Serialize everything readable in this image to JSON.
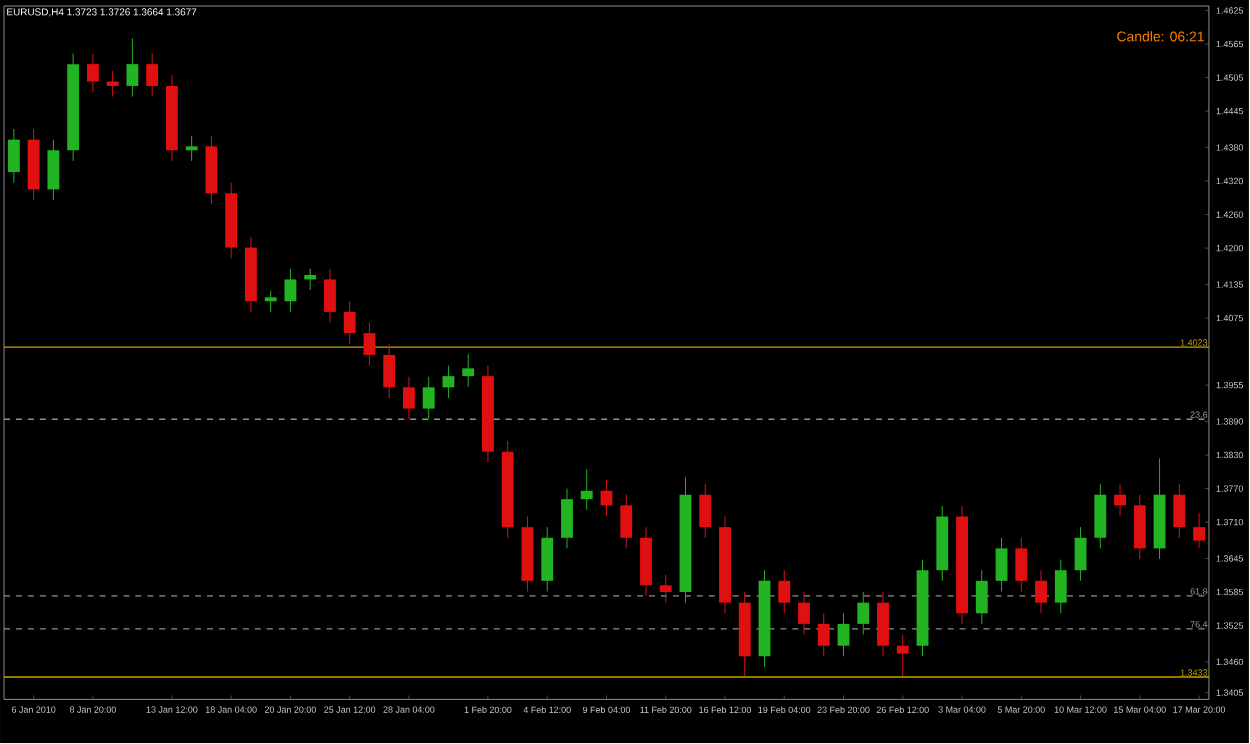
{
  "chart_data": {
    "type": "candlestick",
    "title": "EURUSD,H4  1.3723 1.3726 1.3664 1.3677",
    "categories": [
      null,
      "6 Jan 2010",
      null,
      null,
      "8 Jan 20:00",
      null,
      null,
      null,
      "13 Jan 12:00",
      null,
      null,
      "18 Jan 04:00",
      null,
      null,
      "20 Jan 20:00",
      null,
      null,
      "25 Jan 12:00",
      null,
      null,
      "28 Jan 04:00",
      null,
      null,
      null,
      "1 Feb 20:00",
      null,
      null,
      "4 Feb 12:00",
      null,
      null,
      "9 Feb 04:00",
      null,
      null,
      "11 Feb 20:00",
      null,
      null,
      "16 Feb 12:00",
      null,
      null,
      "19 Feb 04:00",
      null,
      null,
      "23 Feb 20:00",
      null,
      null,
      "26 Feb 12:00",
      null,
      null,
      "3 Mar 04:00",
      null,
      null,
      "5 Mar 20:00",
      null,
      null,
      "10 Mar 12:00",
      null,
      null,
      "15 Mar 04:00",
      null,
      null,
      "17 Mar 20:00"
    ],
    "ohlc": [
      [
        1.4336,
        1.4413,
        1.4317,
        1.4394
      ],
      [
        1.4394,
        1.4413,
        1.4286,
        1.4305
      ],
      [
        1.4305,
        1.4394,
        1.4286,
        1.4375
      ],
      [
        1.4375,
        1.4548,
        1.4356,
        1.4529
      ],
      [
        1.4529,
        1.4548,
        1.4479,
        1.4498
      ],
      [
        1.4498,
        1.4517,
        1.4471,
        1.449
      ],
      [
        1.449,
        1.4575,
        1.4471,
        1.4529
      ],
      [
        1.4529,
        1.4548,
        1.4471,
        1.449
      ],
      [
        1.449,
        1.4509,
        1.4356,
        1.4375
      ],
      [
        1.4375,
        1.4401,
        1.4356,
        1.4382
      ],
      [
        1.4382,
        1.4401,
        1.4279,
        1.4298
      ],
      [
        1.4298,
        1.4317,
        1.4182,
        1.4201
      ],
      [
        1.4201,
        1.422,
        1.4086,
        1.4105
      ],
      [
        1.4105,
        1.4124,
        1.4086,
        1.4112
      ],
      [
        1.4105,
        1.4163,
        1.4086,
        1.4144
      ],
      [
        1.4144,
        1.4163,
        1.4125,
        1.4152
      ],
      [
        1.4144,
        1.4163,
        1.4067,
        1.4086
      ],
      [
        1.4086,
        1.4105,
        1.4029,
        1.4048
      ],
      [
        1.4048,
        1.4067,
        1.399,
        1.4009
      ],
      [
        1.4009,
        1.4028,
        1.3932,
        1.3951
      ],
      [
        1.3951,
        1.397,
        1.3894,
        1.3913
      ],
      [
        1.3913,
        1.397,
        1.3894,
        1.3951
      ],
      [
        1.3951,
        1.399,
        1.3932,
        1.3971
      ],
      [
        1.3971,
        1.401,
        1.3952,
        1.3985
      ],
      [
        1.3971,
        1.399,
        1.3817,
        1.3836
      ],
      [
        1.3836,
        1.3855,
        1.3682,
        1.3701
      ],
      [
        1.3701,
        1.372,
        1.3586,
        1.3605
      ],
      [
        1.3605,
        1.3701,
        1.3586,
        1.3682
      ],
      [
        1.3682,
        1.377,
        1.3663,
        1.3751
      ],
      [
        1.3751,
        1.3805,
        1.3732,
        1.3766
      ],
      [
        1.3766,
        1.3785,
        1.3721,
        1.374
      ],
      [
        1.374,
        1.3759,
        1.3663,
        1.3682
      ],
      [
        1.3682,
        1.3701,
        1.3578,
        1.3597
      ],
      [
        1.3597,
        1.3616,
        1.3566,
        1.3585
      ],
      [
        1.3585,
        1.379,
        1.3566,
        1.3759
      ],
      [
        1.3759,
        1.3778,
        1.3682,
        1.3701
      ],
      [
        1.3701,
        1.372,
        1.3547,
        1.3566
      ],
      [
        1.3566,
        1.3585,
        1.3435,
        1.347
      ],
      [
        1.347,
        1.3624,
        1.3451,
        1.3605
      ],
      [
        1.3605,
        1.3624,
        1.3547,
        1.3566
      ],
      [
        1.3566,
        1.3585,
        1.3509,
        1.3528
      ],
      [
        1.3528,
        1.3547,
        1.347,
        1.3489
      ],
      [
        1.3489,
        1.3547,
        1.347,
        1.3528
      ],
      [
        1.3528,
        1.3585,
        1.3509,
        1.3566
      ],
      [
        1.3566,
        1.3585,
        1.347,
        1.3489
      ],
      [
        1.3489,
        1.3508,
        1.3435,
        1.3475
      ],
      [
        1.3489,
        1.3643,
        1.347,
        1.3624
      ],
      [
        1.3624,
        1.3739,
        1.3605,
        1.372
      ],
      [
        1.372,
        1.3739,
        1.3528,
        1.3547
      ],
      [
        1.3547,
        1.3624,
        1.3528,
        1.3605
      ],
      [
        1.3605,
        1.3682,
        1.3586,
        1.3663
      ],
      [
        1.3663,
        1.3682,
        1.3586,
        1.3605
      ],
      [
        1.3605,
        1.3624,
        1.3547,
        1.3566
      ],
      [
        1.3566,
        1.3643,
        1.3547,
        1.3624
      ],
      [
        1.3624,
        1.3701,
        1.3605,
        1.3682
      ],
      [
        1.3682,
        1.3778,
        1.3663,
        1.3759
      ],
      [
        1.3759,
        1.3778,
        1.3721,
        1.374
      ],
      [
        1.374,
        1.3759,
        1.3644,
        1.3663
      ],
      [
        1.3663,
        1.3824,
        1.3644,
        1.3759
      ],
      [
        1.3759,
        1.3778,
        1.3682,
        1.3701
      ],
      [
        1.3701,
        1.3726,
        1.3664,
        1.3677
      ]
    ],
    "ylim": [
      1.3393,
      1.4633
    ],
    "yticks": [
      1.4625,
      1.4565,
      1.4505,
      1.4445,
      {
        "value": 1.438,
        "label": "1.4380"
      },
      {
        "value": 1.432,
        "label": "1.4320"
      },
      {
        "value": 1.426,
        "label": "1.4260"
      },
      {
        "value": 1.42,
        "label": "1.4200"
      },
      1.4135,
      1.4075,
      1.3955,
      {
        "value": 1.389,
        "label": "1.3890"
      },
      {
        "value": 1.383,
        "label": "1.3830"
      },
      {
        "value": 1.377,
        "label": "1.3770"
      },
      {
        "value": 1.371,
        "label": "1.3710"
      },
      1.3645,
      1.3585,
      1.3525,
      {
        "value": 1.346,
        "label": "1.3460"
      },
      1.3405
    ],
    "ref_lines": [
      {
        "axis": "y",
        "value": 1.4023,
        "label": "1.4023",
        "color": "#c8a000",
        "line_style": "solid"
      },
      {
        "axis": "y",
        "value": 1.3433,
        "label": "1.3433",
        "color": "#c8a000",
        "line_style": "solid"
      },
      {
        "axis": "y",
        "value": 1.3894,
        "color": "#909090",
        "line_style": "dashed"
      },
      {
        "axis": "y",
        "value": 1.3578,
        "color": "#909090",
        "line_style": "dashed"
      },
      {
        "axis": "y",
        "value": 1.3519,
        "color": "#909090",
        "line_style": "dashed"
      }
    ],
    "annotations": [
      "Candle: 06:21",
      {
        "text": "23.6",
        "y": 1.3894
      },
      {
        "text": "61.8",
        "y": 1.3578
      },
      {
        "text": "76.4",
        "y": 1.3519
      }
    ]
  }
}
